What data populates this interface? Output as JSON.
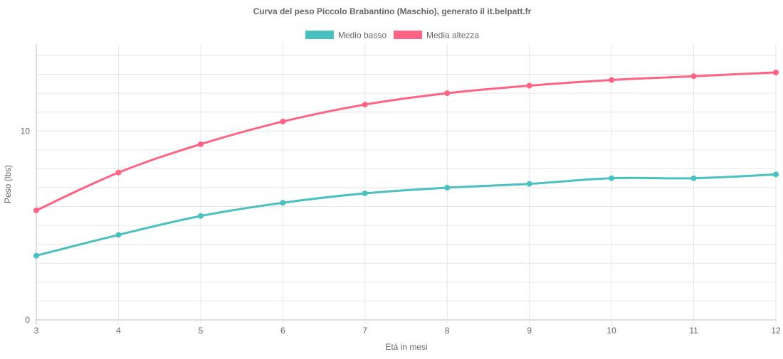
{
  "chart_data": {
    "type": "line",
    "title": "Curva del peso Piccolo Brabantino (Maschio), generato il it.belpatt.fr",
    "xlabel": "Età in mesi",
    "ylabel": "Peso (lbs)",
    "x": [
      3,
      4,
      5,
      6,
      7,
      8,
      9,
      10,
      11,
      12
    ],
    "ylim": [
      0,
      14.3
    ],
    "yticks": [
      0,
      10
    ],
    "grid": true,
    "legend_position": "top",
    "series": [
      {
        "name": "Medio basso",
        "color": "#4bc0c0",
        "values": [
          3.4,
          4.5,
          5.5,
          6.2,
          6.7,
          7.0,
          7.2,
          7.5,
          7.5,
          7.7
        ]
      },
      {
        "name": "Media altezza",
        "color": "#ff6384",
        "values": [
          5.8,
          7.8,
          9.3,
          10.5,
          11.4,
          12.0,
          12.4,
          12.7,
          12.9,
          13.1
        ]
      }
    ]
  }
}
